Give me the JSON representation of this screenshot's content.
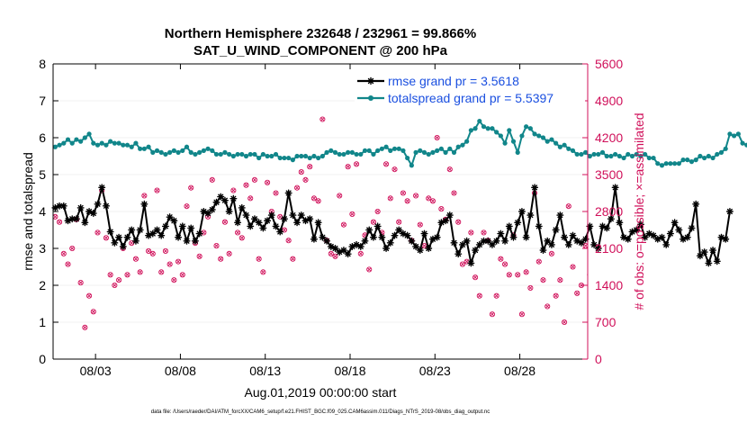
{
  "chart_data": {
    "type": "line",
    "title_line1": "Northern Hemisphere 232648 / 232961 = 99.866%",
    "title_line2": "SAT_U_WIND_COMPONENT @ 200 hPa",
    "xlabel": "Aug.01,2019 00:00:00 start",
    "ylabel_left": "rmse and totalspread",
    "ylabel_right": "# of obs: o=possible; ×=assimilated",
    "footer": "data file: /Users/raeder/DAI/ATM_forcXX/CAM6_setup/f.e21.FHIST_BGC.f09_025.CAM6assim.011/Diags_NTrS_2019-08/obs_diag_output.nc",
    "xlim": [
      0,
      31.5
    ],
    "ylim_left": [
      0,
      8
    ],
    "ylim_right": [
      0,
      5600
    ],
    "x_ticks": [
      2.5,
      7.5,
      12.5,
      17.5,
      22.5,
      27.5
    ],
    "x_tick_labels": [
      "08/03",
      "08/08",
      "08/13",
      "08/18",
      "08/23",
      "08/28"
    ],
    "y_ticks_left": [
      0,
      1,
      2,
      3,
      4,
      5,
      6,
      7,
      8
    ],
    "y_tick_labels_left": [
      "0",
      "1",
      "2",
      "3",
      "4",
      "5",
      "6",
      "7",
      "8"
    ],
    "y_ticks_right": [
      0,
      700,
      1400,
      2100,
      2800,
      3500,
      4200,
      4900,
      5600
    ],
    "y_tick_labels_right": [
      "0",
      "700",
      "1400",
      "2100",
      "2800",
      "3500",
      "4200",
      "4900",
      "5600"
    ],
    "colors": {
      "rmse": "#000000",
      "spread": "#11868a",
      "obs": "#d0105a",
      "legend_text": "#1a4fe0",
      "axis": "#000000",
      "grid": "#e6e6e6"
    },
    "series": [
      {
        "name": "rmse grand pr = 3.5618",
        "key": "rmse",
        "axis": "left",
        "values": [
          4.1,
          4.15,
          4.15,
          3.75,
          3.8,
          3.8,
          4.1,
          3.7,
          4.0,
          3.95,
          4.2,
          4.65,
          4.15,
          3.45,
          3.15,
          3.3,
          3.05,
          3.3,
          3.5,
          3.2,
          3.5,
          4.2,
          3.35,
          3.4,
          3.5,
          3.35,
          3.6,
          3.85,
          3.75,
          3.3,
          3.6,
          3.2,
          3.55,
          3.2,
          3.4,
          4.0,
          3.95,
          4.05,
          4.25,
          4.4,
          4.3,
          4.0,
          4.35,
          3.7,
          4.1,
          3.9,
          3.6,
          3.8,
          3.7,
          3.55,
          3.75,
          3.9,
          3.6,
          3.45,
          3.8,
          4.5,
          3.9,
          3.7,
          3.9,
          3.75,
          3.8,
          3.25,
          3.7,
          3.3,
          3.2,
          3.05,
          3.0,
          2.9,
          2.95,
          2.85,
          3.05,
          3.1,
          3.05,
          3.2,
          3.5,
          3.3,
          3.6,
          3.3,
          3.0,
          3.15,
          3.35,
          3.5,
          3.4,
          3.35,
          3.2,
          3.05,
          2.95,
          3.4,
          3.0,
          3.25,
          3.3,
          3.7,
          3.75,
          3.9,
          3.15,
          2.85,
          3.1,
          3.2,
          2.6,
          2.95,
          3.1,
          3.2,
          3.2,
          3.1,
          3.2,
          3.4,
          3.2,
          3.6,
          3.3,
          3.7,
          4.0,
          3.3,
          3.9,
          4.65,
          3.6,
          2.95,
          3.2,
          3.1,
          3.5,
          3.9,
          3.3,
          3.1,
          3.35,
          3.2,
          3.15,
          3.25,
          3.6,
          3.1,
          3.0,
          3.6,
          3.55,
          3.8,
          4.65,
          3.7,
          3.3,
          3.25,
          3.45,
          3.5,
          3.65,
          3.3,
          3.4,
          3.35,
          3.25,
          3.3,
          3.1,
          3.4,
          3.7,
          3.5,
          3.25,
          3.3,
          3.55,
          4.2,
          2.8,
          2.9,
          2.6,
          2.95,
          2.65,
          3.3,
          3.25,
          4.0
        ]
      },
      {
        "name": "totalspread grand pr = 5.5397",
        "key": "spread",
        "axis": "left",
        "values": [
          5.75,
          5.8,
          5.85,
          5.95,
          5.85,
          5.95,
          5.9,
          6.0,
          6.1,
          5.85,
          5.8,
          5.85,
          5.8,
          5.9,
          5.85,
          5.85,
          5.8,
          5.8,
          5.75,
          5.85,
          5.7,
          5.7,
          5.75,
          5.6,
          5.65,
          5.6,
          5.55,
          5.6,
          5.65,
          5.6,
          5.65,
          5.75,
          5.6,
          5.55,
          5.6,
          5.65,
          5.7,
          5.65,
          5.55,
          5.55,
          5.6,
          5.55,
          5.5,
          5.55,
          5.55,
          5.5,
          5.55,
          5.55,
          5.45,
          5.55,
          5.5,
          5.5,
          5.55,
          5.45,
          5.45,
          5.45,
          5.4,
          5.5,
          5.5,
          5.5,
          5.45,
          5.5,
          5.45,
          5.5,
          5.6,
          5.65,
          5.6,
          5.55,
          5.55,
          5.6,
          5.6,
          5.55,
          5.55,
          5.65,
          5.65,
          5.55,
          5.65,
          5.7,
          5.75,
          5.65,
          5.7,
          5.7,
          5.65,
          5.45,
          5.25,
          5.6,
          5.65,
          5.6,
          5.55,
          5.6,
          5.65,
          5.7,
          5.6,
          5.7,
          5.6,
          5.75,
          5.8,
          5.9,
          6.2,
          6.25,
          6.45,
          6.3,
          6.25,
          6.25,
          6.15,
          6.05,
          5.85,
          6.2,
          5.9,
          5.6,
          6.05,
          6.3,
          6.25,
          6.1,
          6.05,
          6.0,
          5.9,
          5.95,
          5.85,
          5.75,
          5.8,
          5.7,
          5.65,
          5.55,
          5.55,
          5.6,
          5.5,
          5.55,
          5.55,
          5.6,
          5.5,
          5.5,
          5.55,
          5.5,
          5.45,
          5.55,
          5.5,
          5.55,
          5.5,
          5.55,
          5.45,
          5.45,
          5.3,
          5.25,
          5.3,
          5.3,
          5.3,
          5.3,
          5.4,
          5.4,
          5.35,
          5.4,
          5.5,
          5.45,
          5.5,
          5.45,
          5.55,
          5.6,
          5.7,
          6.1,
          6.05,
          6.1,
          5.85,
          5.8,
          5.8,
          5.6
        ]
      },
      {
        "name": "obs possible / assimilated",
        "key": "obs",
        "axis": "right",
        "values": [
          2700,
          2600,
          2000,
          1800,
          2100,
          2650,
          1450,
          600,
          1200,
          900,
          2400,
          3200,
          2300,
          1600,
          1400,
          1500,
          2100,
          1600,
          2200,
          1900,
          1650,
          3100,
          2050,
          2000,
          3200,
          1650,
          2050,
          1800,
          1500,
          1850,
          1600,
          2900,
          3250,
          2200,
          1950,
          2400,
          2700,
          3400,
          2150,
          1900,
          2600,
          2000,
          3200,
          2400,
          2300,
          3300,
          3050,
          3400,
          1900,
          1650,
          3350,
          2800,
          3150,
          2700,
          2450,
          2250,
          1900,
          3250,
          3550,
          3400,
          3650,
          3050,
          3000,
          4550,
          2250,
          2000,
          1950,
          3100,
          2550,
          3650,
          2750,
          3700,
          2000,
          2350,
          1700,
          2600,
          2800,
          2400,
          3700,
          3050,
          3600,
          2600,
          3150,
          3000,
          2250,
          3100,
          2550,
          2150,
          3050,
          3000,
          4200,
          2850,
          2650,
          3600,
          3150,
          2600,
          1800,
          1850,
          2400,
          1550,
          1200,
          2400,
          2250,
          850,
          1200,
          1900,
          1800,
          1600,
          2350,
          1600,
          850,
          1650,
          1350,
          3150,
          1850,
          1500,
          1000,
          2000,
          1200,
          1500,
          700,
          2900,
          1750,
          1250,
          1400,
          2150,
          1600,
          800,
          1800,
          2000,
          3000,
          2450,
          3800,
          1850,
          1300,
          1850,
          1950,
          1750,
          2750,
          2200,
          2850,
          2300,
          1300,
          1100,
          1750,
          1500,
          2900,
          1800,
          2150,
          1300,
          1300,
          1600,
          1400,
          2000,
          2600,
          1950,
          2400,
          1650,
          1200,
          1900,
          2500,
          1300,
          1450,
          1300,
          0
        ]
      }
    ]
  }
}
